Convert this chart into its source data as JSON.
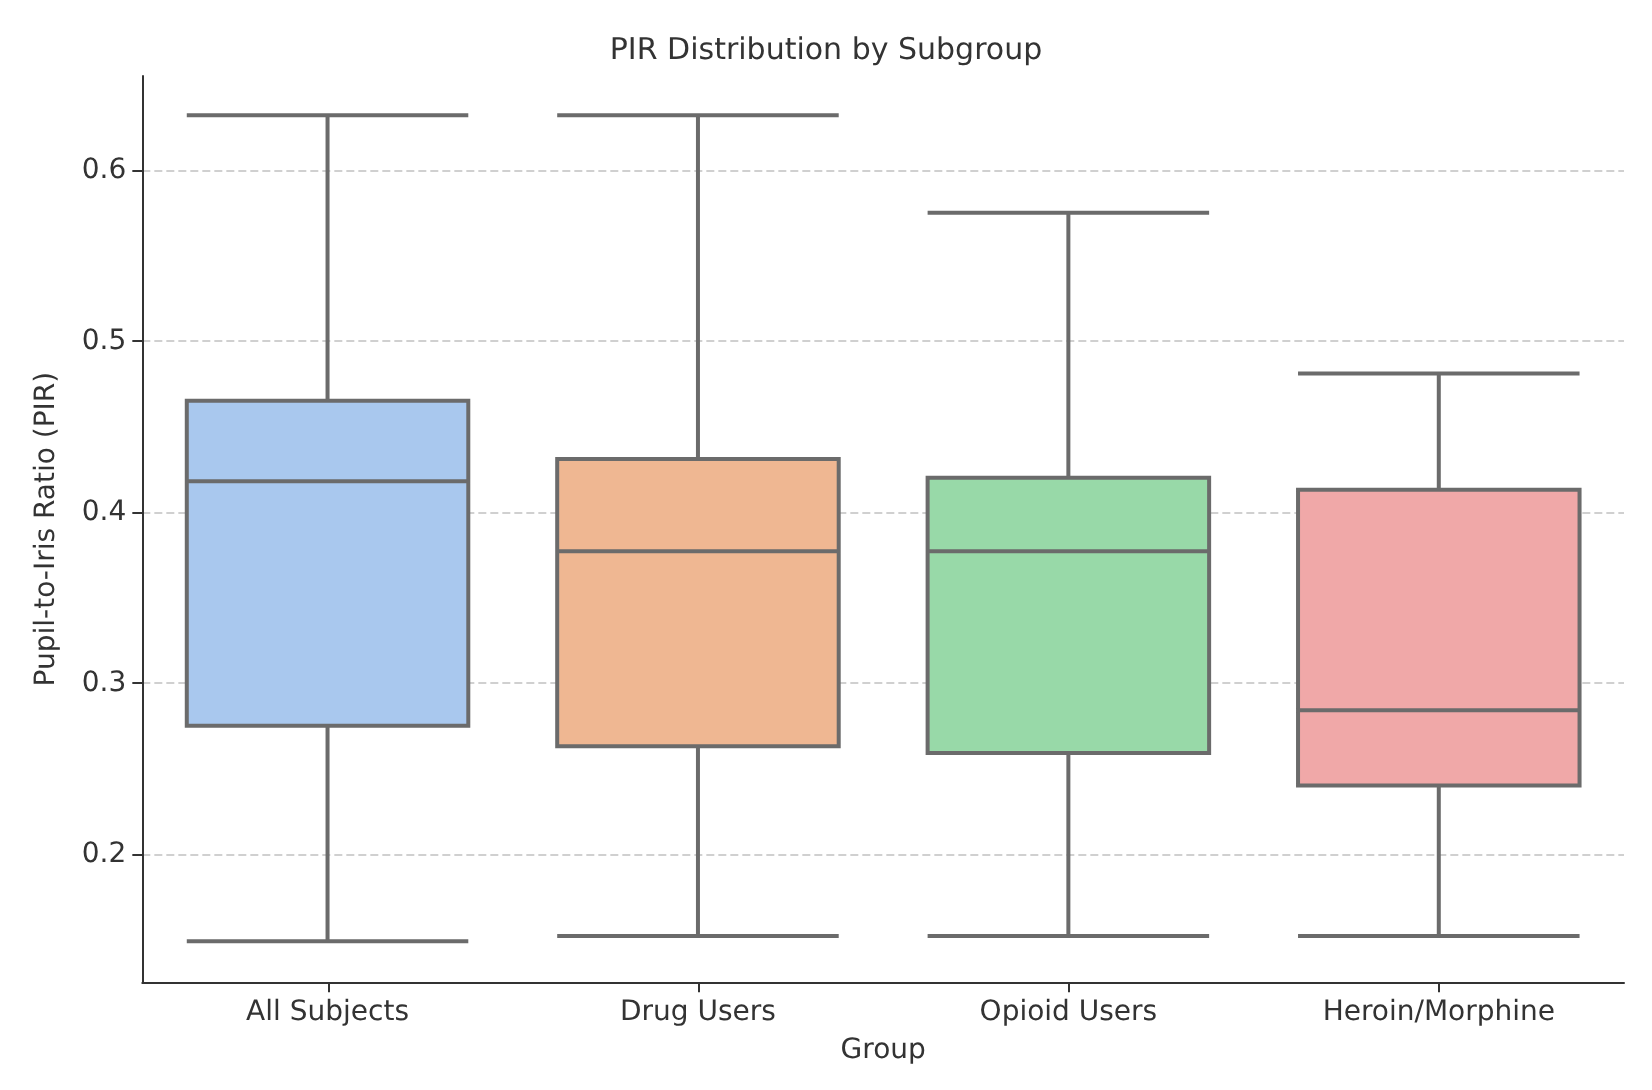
{
  "chart_data": {
    "type": "box",
    "title": "PIR Distribution by Subgroup",
    "xlabel": "Group",
    "ylabel": "Pupil-to-Iris Ratio (PIR)",
    "categories": [
      "All Subjects",
      "Drug Users",
      "Opioid Users",
      "Heroin/Morphine"
    ],
    "boxes": [
      {
        "low": 0.149,
        "q1": 0.275,
        "median": 0.418,
        "q3": 0.465,
        "high": 0.632
      },
      {
        "low": 0.152,
        "q1": 0.263,
        "median": 0.377,
        "q3": 0.431,
        "high": 0.632
      },
      {
        "low": 0.152,
        "q1": 0.259,
        "median": 0.377,
        "q3": 0.42,
        "high": 0.575
      },
      {
        "low": 0.152,
        "q1": 0.24,
        "median": 0.284,
        "q3": 0.413,
        "high": 0.481
      }
    ],
    "colors": [
      "#a9c8ee",
      "#efb792",
      "#98d9a8",
      "#f0a8a8"
    ],
    "ylim": [
      0.125,
      0.655
    ],
    "yticks": [
      0.2,
      0.3,
      0.4,
      0.5,
      0.6
    ],
    "grid": "y"
  }
}
